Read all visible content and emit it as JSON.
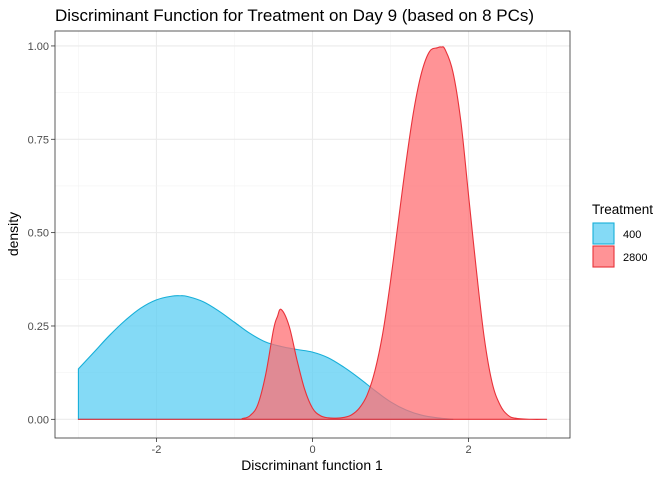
{
  "chart_data": {
    "type": "area",
    "title": "Discriminant Function for Treatment on Day 9 (based on 8 PCs)",
    "xlabel": "Discriminant function 1",
    "ylabel": "density",
    "xlim": [
      -3.3,
      3.3
    ],
    "ylim": [
      -0.05,
      1.04
    ],
    "xticks": [
      -2,
      0,
      2
    ],
    "xtick_labels": [
      "-2",
      "0",
      "2"
    ],
    "yticks": [
      0.0,
      0.25,
      0.5,
      0.75,
      1.0
    ],
    "ytick_labels": [
      "0.00",
      "0.25",
      "0.50",
      "0.75",
      "1.00"
    ],
    "grid": true,
    "legend": {
      "title": "Treatment",
      "position": "right"
    },
    "series": [
      {
        "name": "400",
        "fill": "#5bcdf3",
        "stroke": "#17afd8",
        "x": [
          -3.0,
          -2.8,
          -2.6,
          -2.4,
          -2.2,
          -2.0,
          -1.8,
          -1.7,
          -1.6,
          -1.4,
          -1.2,
          -1.0,
          -0.8,
          -0.6,
          -0.4,
          -0.2,
          0.0,
          0.2,
          0.4,
          0.6,
          0.8,
          1.0,
          1.2,
          1.4,
          1.6,
          1.8
        ],
        "y": [
          0.135,
          0.18,
          0.225,
          0.265,
          0.298,
          0.32,
          0.33,
          0.331,
          0.329,
          0.315,
          0.29,
          0.26,
          0.23,
          0.207,
          0.195,
          0.187,
          0.18,
          0.165,
          0.14,
          0.11,
          0.077,
          0.047,
          0.025,
          0.011,
          0.004,
          0.0
        ]
      },
      {
        "name": "2800",
        "fill": "#ff6f73",
        "stroke": "#e8323a",
        "x": [
          -3.0,
          -1.0,
          -0.9,
          -0.8,
          -0.7,
          -0.6,
          -0.5,
          -0.45,
          -0.4,
          -0.3,
          -0.2,
          -0.1,
          0.0,
          0.1,
          0.2,
          0.3,
          0.4,
          0.5,
          0.6,
          0.7,
          0.8,
          0.9,
          1.0,
          1.1,
          1.2,
          1.3,
          1.4,
          1.5,
          1.6,
          1.65,
          1.7,
          1.8,
          1.9,
          2.0,
          2.1,
          2.2,
          2.3,
          2.4,
          2.5,
          2.6,
          2.8,
          3.0
        ],
        "y": [
          0.0,
          0.0,
          0.002,
          0.01,
          0.04,
          0.12,
          0.24,
          0.275,
          0.294,
          0.25,
          0.16,
          0.08,
          0.03,
          0.01,
          0.004,
          0.003,
          0.005,
          0.012,
          0.03,
          0.065,
          0.13,
          0.23,
          0.37,
          0.53,
          0.69,
          0.83,
          0.93,
          0.985,
          0.995,
          0.997,
          0.99,
          0.93,
          0.8,
          0.6,
          0.4,
          0.22,
          0.1,
          0.04,
          0.012,
          0.003,
          0.0,
          0.0
        ]
      }
    ]
  }
}
